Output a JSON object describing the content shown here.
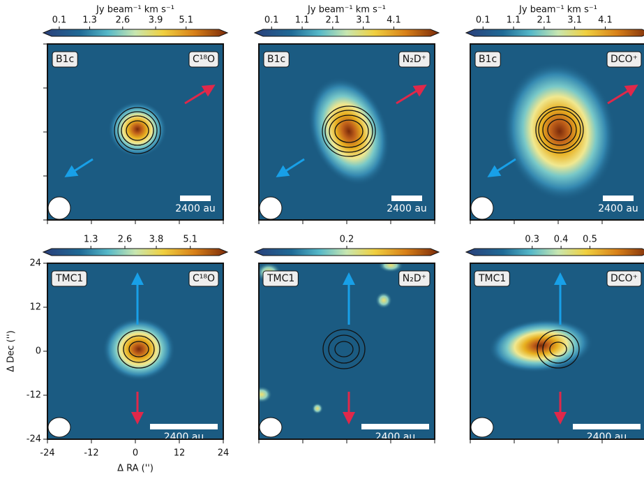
{
  "chart_data": [
    {
      "type": "image",
      "source": "B1c",
      "line": "C¹⁸O",
      "colorbar_label": "Jy beam⁻¹ km s⁻¹",
      "clim": [
        -0.2,
        6.4
      ],
      "cticks": [
        0.1,
        1.3,
        2.6,
        3.9,
        5.1
      ],
      "scalebar": "2400 au"
    },
    {
      "type": "image",
      "source": "B1c",
      "line": "N₂D⁺",
      "colorbar_label": "Jy beam⁻¹ km s⁻¹",
      "clim": [
        -0.18,
        5.3
      ],
      "cticks": [
        0.1,
        1.1,
        2.1,
        3.1,
        4.1
      ],
      "scalebar": "2400 au"
    },
    {
      "type": "image",
      "source": "B1c",
      "line": "DCO⁺",
      "colorbar_label": "Jy beam⁻¹ km s⁻¹",
      "clim": [
        -0.18,
        5.3
      ],
      "cticks": [
        0.1,
        1.1,
        2.1,
        3.1,
        4.1
      ],
      "scalebar": "2400 au"
    },
    {
      "type": "image",
      "source": "TMC1",
      "line": "C¹⁸O",
      "clim": [
        -0.2,
        6.2
      ],
      "cticks": [
        1.3,
        2.6,
        3.8,
        5.1
      ],
      "scalebar": "2400 au",
      "xlabel": "Δ RA ('')",
      "ylabel": "Δ Dec ('')",
      "xlim": [
        -24,
        24
      ],
      "ylim": [
        -24,
        24
      ],
      "xticks": [
        -24,
        -12,
        0,
        12,
        24
      ],
      "yticks": [
        -24,
        -12,
        0,
        12,
        24
      ]
    },
    {
      "type": "image",
      "source": "TMC1",
      "line": "N₂D⁺",
      "clim": [
        -0.02,
        0.42
      ],
      "cticks": [
        0.2
      ],
      "scalebar": "2400 au"
    },
    {
      "type": "image",
      "source": "TMC1",
      "line": "DCO⁺",
      "clim": [
        0.1,
        0.68
      ],
      "cticks": [
        0.3,
        0.4,
        0.5
      ],
      "scalebar": "2400 au"
    }
  ]
}
